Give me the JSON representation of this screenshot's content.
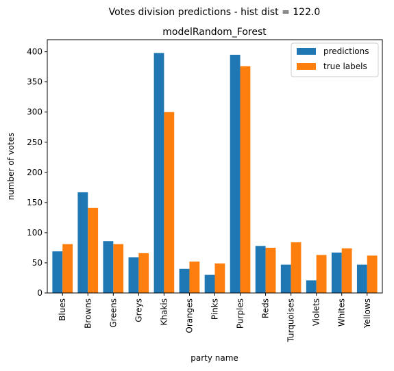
{
  "chart_data": {
    "type": "bar",
    "suptitle": "Votes division predictions - hist dist = 122.0",
    "title": "modelRandom_Forest",
    "xlabel": "party name",
    "ylabel": "number of votes",
    "ylim": [
      0,
      420
    ],
    "yticks": [
      0,
      50,
      100,
      150,
      200,
      250,
      300,
      350,
      400
    ],
    "legend_position": "top-right",
    "grid": false,
    "categories": [
      "Blues",
      "Browns",
      "Greens",
      "Greys",
      "Khakis",
      "Oranges",
      "Pinks",
      "Purples",
      "Reds",
      "Turquoises",
      "Violets",
      "Whites",
      "Yellows"
    ],
    "series": [
      {
        "name": "predictions",
        "color": "#1f77b4",
        "values": [
          69,
          167,
          86,
          59,
          398,
          40,
          30,
          395,
          78,
          47,
          21,
          67,
          47
        ]
      },
      {
        "name": "true labels",
        "color": "#ff7f0e",
        "values": [
          81,
          141,
          81,
          66,
          300,
          52,
          49,
          376,
          75,
          84,
          63,
          74,
          62
        ]
      }
    ]
  }
}
